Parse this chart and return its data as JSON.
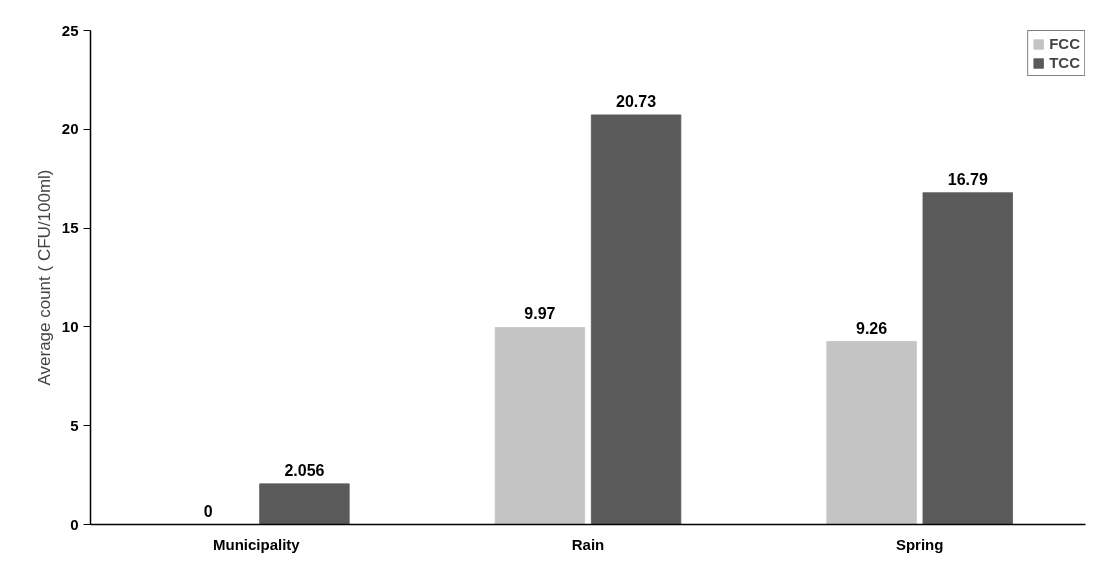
{
  "chart_data": {
    "type": "bar",
    "ylabel": "Average count ( CFU/100ml)",
    "categories": [
      "Municipality",
      "Rain",
      "Spring"
    ],
    "series": [
      {
        "name": "FCC",
        "color": "#c4c4c4",
        "values": [
          0,
          9.97,
          9.26
        ]
      },
      {
        "name": "TCC",
        "color": "#5a5a5a",
        "values": [
          2.056,
          20.73,
          16.79
        ]
      }
    ],
    "ylim": [
      0,
      25
    ],
    "yticks": [
      0,
      5,
      10,
      15,
      20,
      25
    ],
    "grid": false,
    "legend": "top right",
    "data_labels": true
  }
}
